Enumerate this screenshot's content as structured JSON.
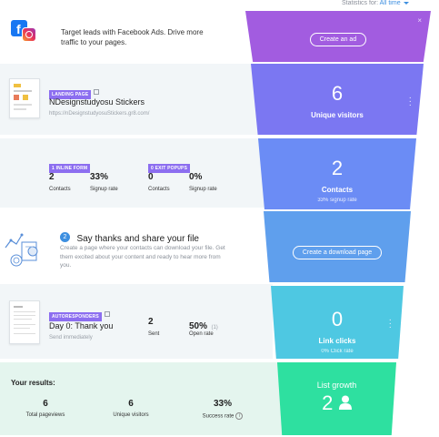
{
  "stats_filter": {
    "label": "Statistics for:",
    "value": "All time"
  },
  "ads": {
    "text_line1": "Target leads with Facebook Ads. Drive more",
    "text_line2": "traffic to your pages.",
    "button": "Create an ad",
    "close": "×"
  },
  "landing": {
    "tag": "LANDING PAGE",
    "name": "NDesignstudyosu Stickers",
    "url": "https://nDesignstudyosuStickers.gr8.com/",
    "funnel_value": "6",
    "funnel_label": "Unique visitors"
  },
  "forms": {
    "form_tag": "1 INLINE FORM",
    "form_contacts": "2",
    "form_contacts_label": "Contacts",
    "form_rate": "33%",
    "form_rate_label": "Signup rate",
    "popup_tag": "0 EXIT POPUPS",
    "popup_contacts": "0",
    "popup_contacts_label": "Contacts",
    "popup_rate": "0%",
    "popup_rate_label": "Signup rate",
    "funnel_value": "2",
    "funnel_label": "Contacts",
    "funnel_sub": "33% signup rate"
  },
  "thanks": {
    "step": "2",
    "title": "Say thanks and share your file",
    "desc_line1": "Create a page where your contacts can download your file. Get",
    "desc_line2": "them excited about your content and ready to hear more from",
    "desc_line3": "you.",
    "button": "Create a download page"
  },
  "autoresponder": {
    "tag": "AUTORESPONDERS",
    "name": "Day 0: Thank you",
    "timing": "Send immediately",
    "sent": "2",
    "sent_label": "Sent",
    "open_rate": "50%",
    "open_count": "(1)",
    "open_label": "Open rate",
    "funnel_value": "0",
    "funnel_label": "Link clicks",
    "funnel_sub": "0% Click rate"
  },
  "results": {
    "title": "Your results:",
    "pageviews": "6",
    "pageviews_label": "Total pageviews",
    "visitors": "6",
    "visitors_label": "Unique visitors",
    "success": "33%",
    "success_label": "Success rate",
    "info": "i",
    "funnel_label": "List growth",
    "funnel_value": "2"
  },
  "colors": {
    "purple": "#a25ce0",
    "violet": "#7b77f2",
    "indigo": "#6b8cf5",
    "blue": "#5f9fed",
    "cyan": "#4ec8e2",
    "green": "#2ee0a0"
  },
  "icons": [
    "facebook-icon",
    "instagram-icon",
    "external-link-icon",
    "more-icon",
    "close-icon",
    "person-icon",
    "info-icon",
    "chevron-down-icon"
  ]
}
